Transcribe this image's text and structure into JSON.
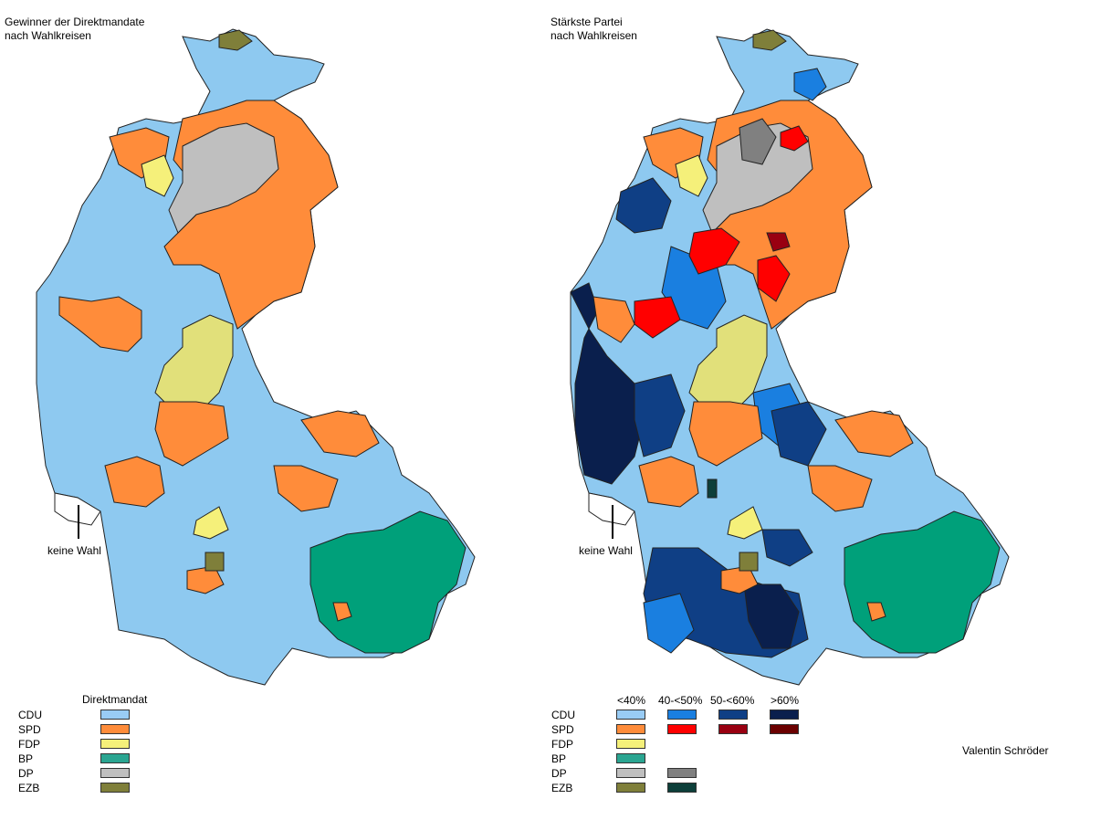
{
  "left": {
    "title": "Gewinner der Direktmandate\nnach Wahlkreisen",
    "no_vote_label": "keine Wahl",
    "legend_title": "Direktmandat"
  },
  "right": {
    "title": "Stärkste Partei\nnach Wahlkreisen",
    "no_vote_label": "keine Wahl",
    "legend_headers": [
      "<40%",
      "40-<50%",
      "50-<60%",
      ">60%"
    ]
  },
  "parties": [
    "CDU",
    "SPD",
    "FDP",
    "BP",
    "DP",
    "EZB"
  ],
  "colors": {
    "CDU": [
      "#99ccf5",
      "#1a7fe0",
      "#0f3f85",
      "#0a1f4d"
    ],
    "SPD": [
      "#ff8c3a",
      "#ff0000",
      "#990011",
      "#6b0000"
    ],
    "FDP": [
      "#f5f07a"
    ],
    "BP": [
      "#2aa591"
    ],
    "DP": [
      "#bfbfbf",
      "#808080"
    ],
    "EZB": [
      "#7f7f3a",
      "#0d3f3a"
    ],
    "green": "#00a07a",
    "orange": "#ff8c3a",
    "lightblue": "#8ec9f0"
  },
  "author": "Valentin Schröder"
}
